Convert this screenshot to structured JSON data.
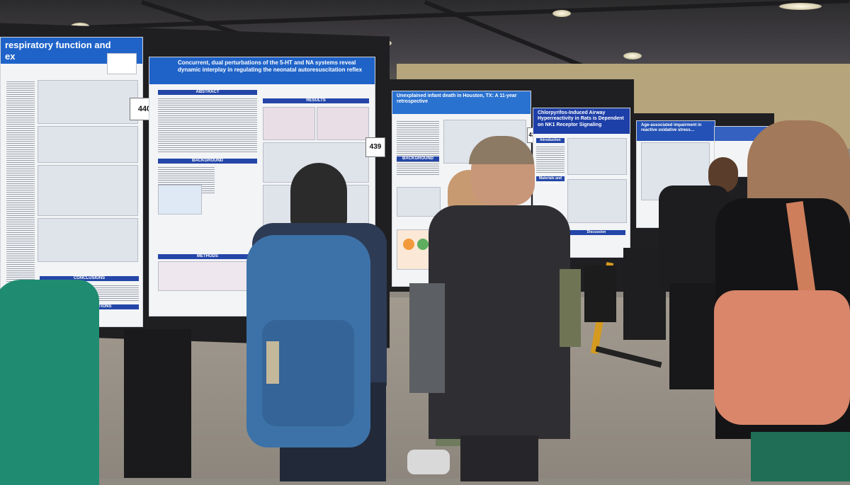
{
  "scene": "Poster session with attendees viewing scientific posters in an exhibit hall",
  "colors": {
    "poster_header_blue": "#1f63c9",
    "section_bar_navy": "#2346a8",
    "backpack_blue": "#3d72a8",
    "tote_bag": "#d9866a",
    "suit": "#2f2f33"
  },
  "posters": {
    "left": {
      "header": "respiratory function and\nex",
      "sections": [
        "CONCLUSIONS",
        "FUTURE DIRECTIONS"
      ]
    },
    "center_left": {
      "number": "440",
      "header": "Concurrent, dual perturbations of the 5-HT and NA systems reveal dynamic interplay in regulating the neonatal autoresuscitation reflex",
      "sections": [
        "ABSTRACT",
        "RESULTS",
        "BACKGROUND",
        "METHODS"
      ]
    },
    "center": {
      "number": "439",
      "header": "Unexplained infant death in Houston, TX: A 11-year retrospective",
      "sections": [
        "BACKGROUND"
      ]
    },
    "center_right": {
      "number": "438",
      "header": "Chlorpyrifos-Induced Airway Hyperreactivity in Rats is Dependent on NK1 Receptor Signaling",
      "sections": [
        "Introduction",
        "Materials and Methods",
        "Discussion"
      ]
    },
    "right": {
      "header": "Age-associated impairment in reactive oxidative stress…",
      "sections": []
    }
  }
}
